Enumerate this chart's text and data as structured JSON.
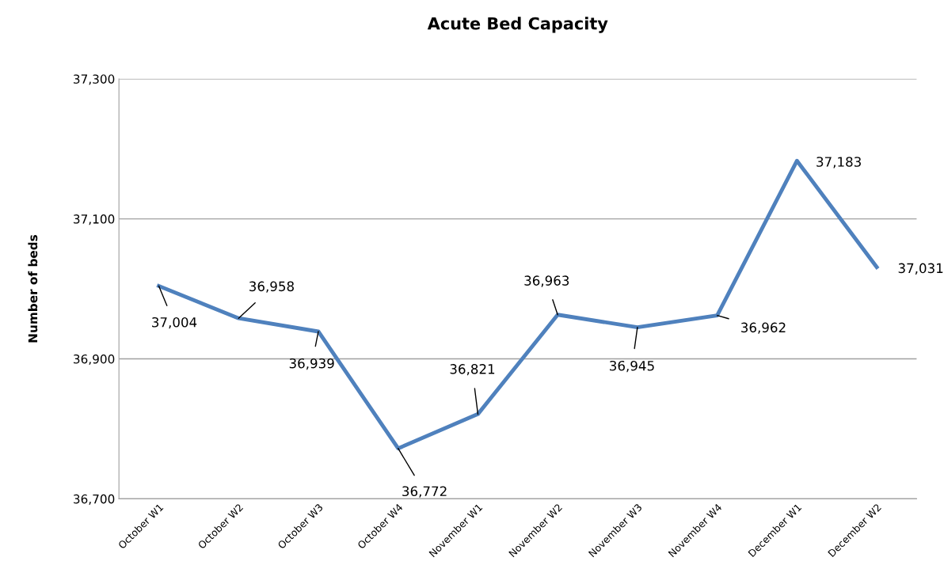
{
  "chart_data": {
    "type": "line",
    "title": "Acute Bed Capacity",
    "ylabel": "Number of beds",
    "categories": [
      "October W1",
      "October W2",
      "October W3",
      "October W4",
      "November W1",
      "November W2",
      "November W3",
      "November W4",
      "December W1",
      "December W2"
    ],
    "series": [
      {
        "color": "#4f81bd",
        "values": [
          37004,
          36958,
          36939,
          36772,
          36821,
          36963,
          36945,
          36962,
          37183,
          37031
        ],
        "value_labels": [
          "37,004",
          "36,958",
          "36,939",
          "36,772",
          "36,821",
          "36,963",
          "36,945",
          "36,962",
          "37,183",
          "37,031"
        ]
      }
    ],
    "ylim": [
      36700,
      37300
    ],
    "yticks": [
      {
        "value": 36700,
        "label": "36,700"
      },
      {
        "value": 36900,
        "label": "36,900"
      },
      {
        "value": 37100,
        "label": "37,100"
      },
      {
        "value": 37300,
        "label": "37,300"
      }
    ],
    "grid": "y",
    "marker": "none",
    "line_style": "solid"
  }
}
